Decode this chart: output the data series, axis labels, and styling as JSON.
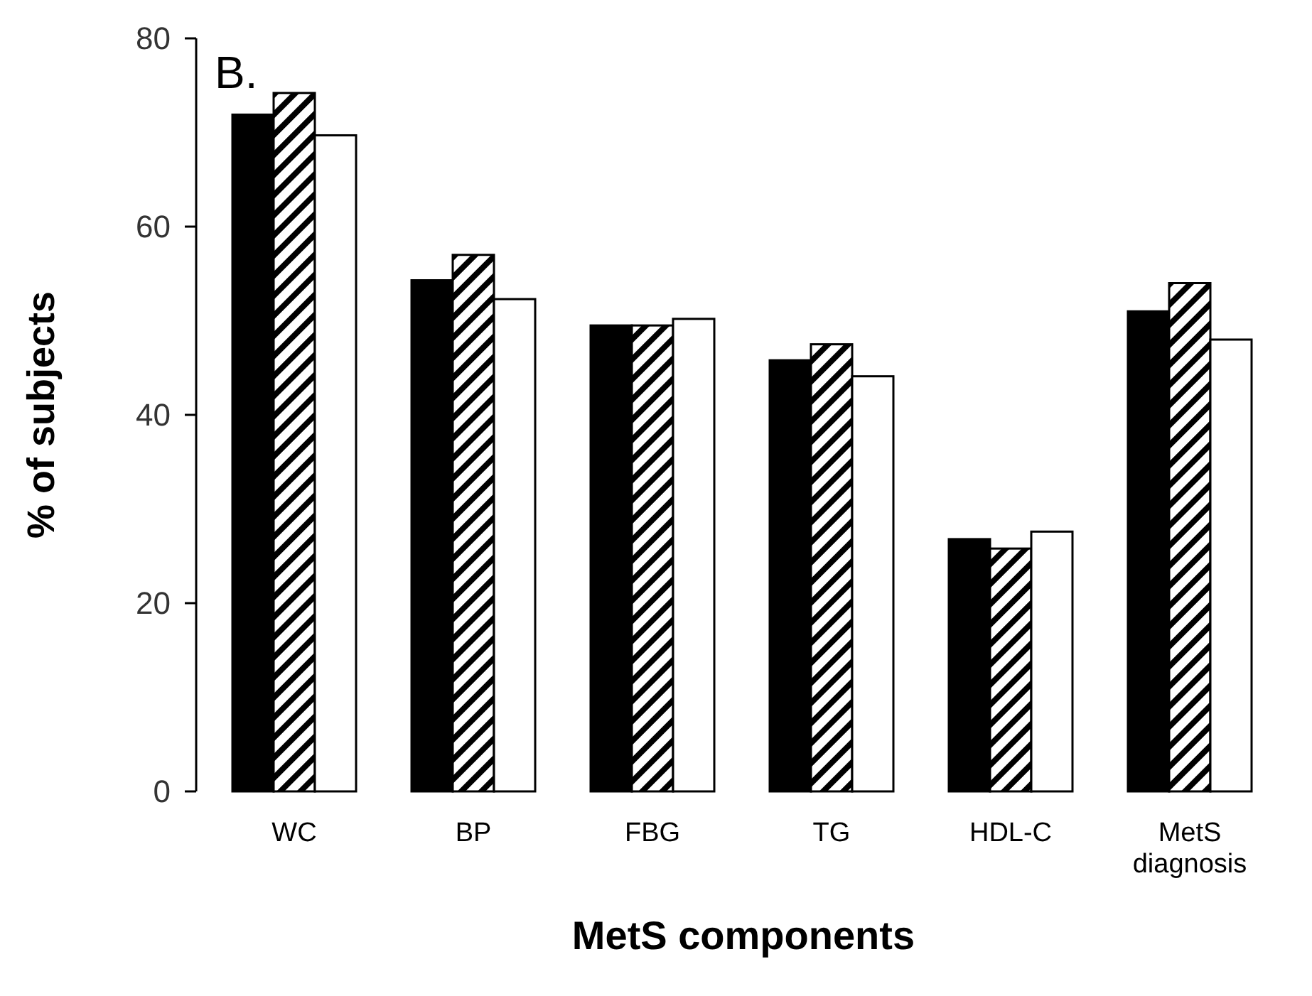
{
  "chart_data": {
    "type": "bar",
    "title": "B.",
    "xlabel": "MetS components",
    "ylabel": "% of subjects",
    "categories": [
      "WC",
      "BP",
      "FBG",
      "TG",
      "HDL-C",
      "MetS diagnosis"
    ],
    "series": [
      {
        "color": "#000000",
        "values": [
          71.9,
          54.3,
          49.5,
          45.8,
          26.8,
          51.0
        ]
      },
      {
        "color": "#000000",
        "values": [
          74.2,
          57.0,
          49.5,
          47.5,
          25.8,
          54.0
        ]
      },
      {
        "color": "#ffffff",
        "values": [
          69.7,
          52.3,
          50.2,
          44.1,
          27.6,
          48.0
        ]
      }
    ],
    "ylim": [
      0,
      80
    ],
    "yticks": [
      0,
      20,
      40,
      60,
      80
    ]
  }
}
